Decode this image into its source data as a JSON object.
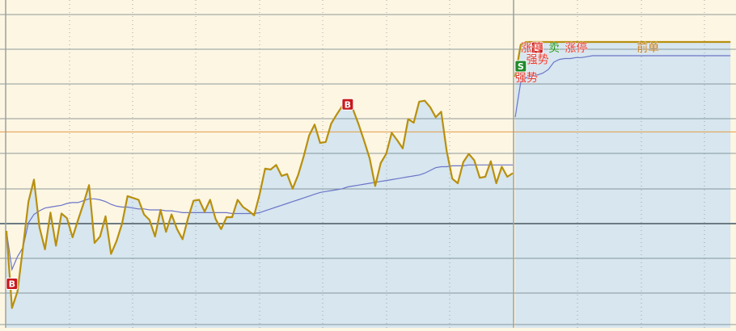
{
  "chart_data": {
    "type": "line",
    "description_free": true,
    "days": [
      {
        "price": [
          -0.8,
          -9.2,
          -7.4,
          -2.6,
          2.4,
          4.8,
          -0.4,
          -2.8,
          1.2,
          -2.4,
          1.1,
          0.6,
          -1.5,
          0.4,
          2.2,
          4.2,
          -2.1,
          -1.4,
          0.8,
          -3.3,
          -1.9,
          0.0,
          3.0,
          2.8,
          2.6,
          1.0,
          0.4,
          -1.4,
          1.5,
          -0.9,
          1.0,
          -0.6,
          -1.7,
          0.6,
          2.5,
          2.6,
          1.3,
          2.6,
          0.5,
          -0.6,
          0.7,
          0.7,
          2.6,
          1.8,
          1.4,
          0.9,
          3.2,
          6.0,
          5.9,
          6.4,
          5.2,
          5.4,
          3.8,
          5.3,
          7.3,
          9.6,
          10.8,
          8.8,
          8.9,
          10.9,
          11.9,
          12.8,
          13.0,
          12.4,
          10.8,
          9.0,
          7.1,
          4.1,
          6.6,
          7.6,
          9.9,
          9.1,
          8.2,
          11.4,
          11.0,
          13.3,
          13.4,
          12.7,
          11.6,
          12.2,
          7.9,
          4.9,
          4.4,
          6.7,
          7.6,
          6.9,
          5.0,
          5.1,
          6.8,
          4.4,
          6.2,
          5.1,
          5.5
        ],
        "avg": [
          -0.8,
          -5.0,
          -3.6,
          -2.6,
          0.1,
          1.0,
          1.4,
          1.7,
          1.8,
          1.9,
          2.0,
          2.2,
          2.3,
          2.3,
          2.5,
          2.7,
          2.7,
          2.6,
          2.4,
          2.1,
          1.9,
          1.8,
          1.8,
          1.7,
          1.6,
          1.6,
          1.5,
          1.5,
          1.5,
          1.4,
          1.4,
          1.3,
          1.2,
          1.2,
          1.2,
          1.2,
          1.2,
          1.2,
          1.2,
          1.2,
          1.2,
          1.1,
          1.1,
          1.1,
          1.1,
          1.1,
          1.2,
          1.4,
          1.6,
          1.8,
          2.0,
          2.2,
          2.4,
          2.6,
          2.8,
          3.0,
          3.2,
          3.4,
          3.5,
          3.6,
          3.7,
          3.8,
          4.0,
          4.1,
          4.2,
          4.3,
          4.4,
          4.5,
          4.6,
          4.7,
          4.8,
          4.9,
          5.0,
          5.1,
          5.2,
          5.3,
          5.5,
          5.8,
          6.1,
          6.2,
          6.2,
          6.3,
          6.3,
          6.3,
          6.4,
          6.4,
          6.4,
          6.4,
          6.4,
          6.4,
          6.4,
          6.4,
          6.4
        ]
      },
      {
        "price": [
          16.0,
          19.5,
          19.8,
          19.8,
          19.8,
          19.8,
          19.8,
          19.8,
          19.8,
          19.8,
          19.8,
          19.8,
          19.8,
          19.8,
          19.8,
          19.8,
          19.8,
          19.8,
          19.8,
          19.8,
          19.8,
          19.8,
          19.8,
          19.8,
          19.8,
          19.8,
          19.8,
          19.8,
          19.8,
          19.8,
          19.8,
          19.8,
          19.8,
          19.8,
          19.8,
          19.8,
          19.8,
          19.8,
          19.8,
          19.8
        ],
        "avg": [
          11.6,
          15.4,
          15.9,
          16.1,
          16.2,
          16.4,
          16.8,
          17.6,
          17.9,
          18.0,
          18.0,
          18.1,
          18.1,
          18.2,
          18.3,
          18.3,
          18.3,
          18.3,
          18.3,
          18.3,
          18.3,
          18.3,
          18.3,
          18.3,
          18.3,
          18.3,
          18.3,
          18.3,
          18.3,
          18.3,
          18.3,
          18.3,
          18.3,
          18.3,
          18.3,
          18.3,
          18.3,
          18.3,
          18.3,
          18.3
        ]
      }
    ],
    "reference_level": 10.0,
    "markers": [
      {
        "text": "B",
        "type": "buy",
        "day": 0,
        "index": 1
      },
      {
        "text": "B",
        "type": "buy",
        "day": 0,
        "index": 62
      },
      {
        "text": "B",
        "type": "buy",
        "day": 1,
        "index": 4
      },
      {
        "text": "S",
        "type": "sell",
        "day": 1,
        "index": 1
      }
    ],
    "annotations": [
      {
        "text": "涨停",
        "day": 1,
        "index": 1,
        "color": "#e8352a"
      },
      {
        "text": "卖",
        "day": 1,
        "index": 6,
        "color": "#1a8f1a"
      },
      {
        "text": "涨停",
        "day": 1,
        "index": 9,
        "color": "#e8352a"
      },
      {
        "text": "前单",
        "day": 1,
        "index": 22,
        "color": "#c07a18"
      },
      {
        "text": "强势",
        "day": 1,
        "index": 2,
        "color": "#e8352a",
        "at": "avg"
      },
      {
        "text": "强势",
        "day": 1,
        "index": 0,
        "color": "#e8352a",
        "at": "price"
      }
    ],
    "colors": {
      "background": "#fdf6e3",
      "fill": "#d7e6ef",
      "price_line": "#b8900e",
      "avg_line": "#6b75c8",
      "grid": "#6c7a82",
      "reference_line": "#e39b45",
      "divider": "#9aa0a0"
    }
  }
}
